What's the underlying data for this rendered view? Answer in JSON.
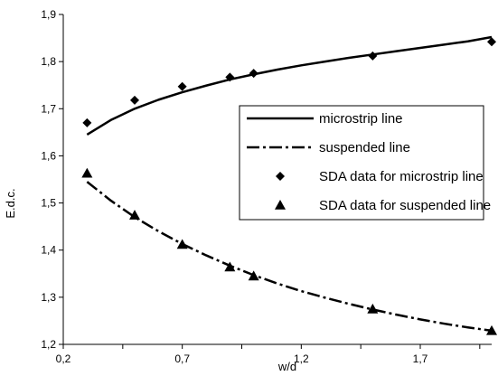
{
  "chart_data": {
    "type": "line",
    "xlabel": "w/d",
    "ylabel": "E.d.c.",
    "xlim": [
      0.2,
      2.0
    ],
    "ylim": [
      1.2,
      1.9
    ],
    "x_ticks": [
      "0,2",
      "0,7",
      "1,2",
      "1,7"
    ],
    "x_tick_values": [
      0.2,
      0.7,
      1.2,
      1.7
    ],
    "y_ticks": [
      "1,2",
      "1,3",
      "1,4",
      "1,5",
      "1,6",
      "1,7",
      "1,8",
      "1,9"
    ],
    "y_tick_values": [
      1.2,
      1.3,
      1.4,
      1.5,
      1.6,
      1.7,
      1.8,
      1.9
    ],
    "grid": false,
    "legend": "center-right",
    "series": [
      {
        "name": "microstrip line",
        "kind": "line",
        "style": "solid",
        "x": [
          0.3,
          0.4,
          0.5,
          0.6,
          0.7,
          0.8,
          0.9,
          1.0,
          1.1,
          1.2,
          1.3,
          1.4,
          1.5,
          1.6,
          1.7,
          1.8,
          1.9,
          2.0
        ],
        "y": [
          1.645,
          1.676,
          1.7,
          1.719,
          1.735,
          1.749,
          1.762,
          1.773,
          1.783,
          1.792,
          1.8,
          1.808,
          1.815,
          1.822,
          1.829,
          1.836,
          1.843,
          1.852
        ]
      },
      {
        "name": "suspended line",
        "kind": "line",
        "style": "dash-dot",
        "x": [
          0.3,
          0.4,
          0.5,
          0.6,
          0.7,
          0.8,
          0.9,
          1.0,
          1.1,
          1.2,
          1.3,
          1.4,
          1.5,
          1.6,
          1.7,
          1.8,
          1.9,
          2.0
        ],
        "y": [
          1.545,
          1.505,
          1.47,
          1.44,
          1.413,
          1.389,
          1.367,
          1.347,
          1.329,
          1.313,
          1.299,
          1.286,
          1.274,
          1.263,
          1.253,
          1.244,
          1.236,
          1.229
        ]
      },
      {
        "name": "SDA data for microstrip line",
        "kind": "scatter",
        "marker": "diamond",
        "x": [
          0.3,
          0.5,
          0.7,
          0.9,
          1.0,
          1.5,
          2.0
        ],
        "y": [
          1.67,
          1.718,
          1.747,
          1.767,
          1.775,
          1.812,
          1.842
        ]
      },
      {
        "name": "SDA data for suspended line",
        "kind": "scatter",
        "marker": "triangle",
        "x": [
          0.3,
          0.5,
          0.7,
          0.9,
          1.0,
          1.5,
          2.0
        ],
        "y": [
          1.563,
          1.474,
          1.412,
          1.364,
          1.345,
          1.275,
          1.229
        ]
      }
    ]
  }
}
